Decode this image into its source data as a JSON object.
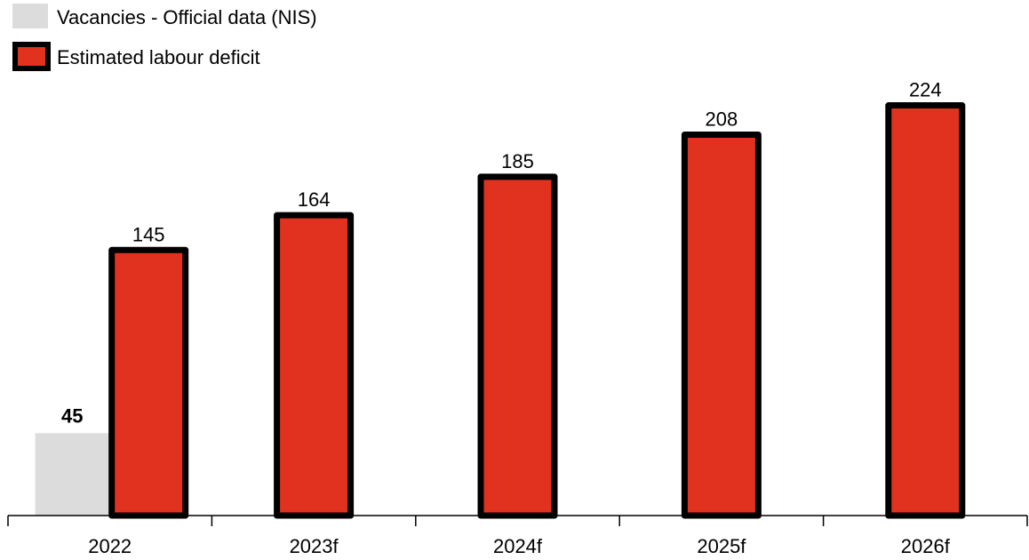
{
  "chart_data": {
    "type": "bar",
    "categories": [
      "2022",
      "2023f",
      "2024f",
      "2025f",
      "2026f"
    ],
    "series": [
      {
        "name": "Vacancies - Official data (NIS)",
        "values": [
          45,
          null,
          null,
          null,
          null
        ],
        "color": "#dcdcdc"
      },
      {
        "name": "Estimated labour deficit",
        "values": [
          145,
          164,
          185,
          208,
          224
        ],
        "color": "#e0321e",
        "border_color": "#000000"
      }
    ],
    "title": "",
    "xlabel": "",
    "ylabel": "",
    "ylim": [
      0,
      240
    ],
    "grid": false,
    "legend_position": "top-left"
  }
}
